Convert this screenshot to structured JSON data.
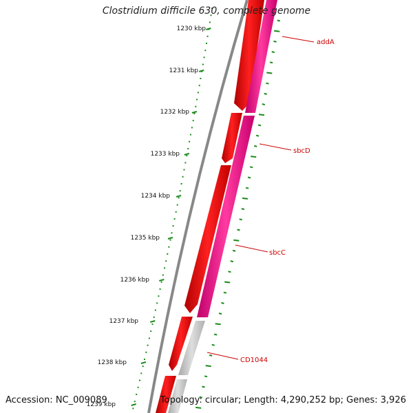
{
  "map": {
    "title": "Clostridium difficile 630, complete genome",
    "accession": "Accession: NC_009089",
    "summary": "Topology: circular; Length: 4,290,252 bp; Genes: 3,926"
  },
  "scale": {
    "labels": [
      "1230 kbp",
      "1231 kbp",
      "1232 kbp",
      "1233 kbp",
      "1234 kbp",
      "1235 kbp",
      "1236 kbp",
      "1237 kbp",
      "1238 kbp",
      "1239 kbp"
    ]
  },
  "genes": [
    {
      "name": "addA"
    },
    {
      "name": "sbcD"
    },
    {
      "name": "sbcC"
    },
    {
      "name": "CD1044"
    }
  ],
  "colors": {
    "backbone": "#808080",
    "cds": "#ff0000",
    "cds_dark": "#c00000",
    "gene": "#ff1493",
    "gene_dark": "#c8006e",
    "pseudo": "#c0c0c0",
    "scale_ticks": "#1a8a1a",
    "gene_labels": "#cc0000"
  }
}
